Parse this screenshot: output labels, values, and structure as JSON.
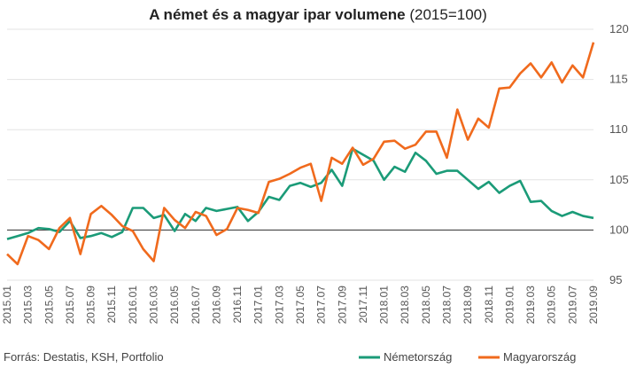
{
  "chart_data": {
    "type": "line",
    "title": "A német és a magyar ipar volumene",
    "title_suffix": "(2015=100)",
    "source": "Forrás: Destatis, KSH, Portfolio",
    "categories": [
      "2015.01",
      null,
      "2015.03",
      null,
      "2015.05",
      null,
      "2015.07",
      null,
      "2015.09",
      null,
      "2015.11",
      null,
      "2016.01",
      null,
      "2016.03",
      null,
      "2016.05",
      null,
      "2016.07",
      null,
      "2016.09",
      null,
      "2016.11",
      null,
      "2017.01",
      null,
      "2017.03",
      null,
      "2017.05",
      null,
      "2017.07",
      null,
      "2017.09",
      null,
      "2017.11",
      null,
      "2018.01",
      null,
      "2018.03",
      null,
      "2018.05",
      null,
      "2018.07",
      null,
      "2018.09",
      null,
      "2018.11",
      null,
      "2019.01",
      null,
      "2019.03",
      null,
      "2019.05",
      null,
      "2019.07",
      null,
      "2019.09"
    ],
    "series": [
      {
        "name": "Németország",
        "color": "#1b9b78",
        "values": [
          99.1,
          99.4,
          99.7,
          100.2,
          100.1,
          99.8,
          100.9,
          99.2,
          99.4,
          99.7,
          99.3,
          99.8,
          102.2,
          102.2,
          101.2,
          101.5,
          99.9,
          101.6,
          100.9,
          102.2,
          101.9,
          102.1,
          102.3,
          100.9,
          101.8,
          103.3,
          103.0,
          104.4,
          104.7,
          104.3,
          104.7,
          106.0,
          104.4,
          108.1,
          107.5,
          106.9,
          105.0,
          106.3,
          105.8,
          107.7,
          106.9,
          105.6,
          105.9,
          105.9,
          105.0,
          104.1,
          104.8,
          103.7,
          104.4,
          104.9,
          102.8,
          102.9,
          101.9,
          101.4,
          101.8,
          101.4,
          101.2
        ]
      },
      {
        "name": "Magyarország",
        "color": "#f06a1d",
        "values": [
          97.6,
          96.6,
          99.4,
          99.0,
          98.1,
          100.2,
          101.2,
          97.6,
          101.6,
          102.4,
          101.5,
          100.4,
          99.9,
          98.1,
          96.9,
          102.2,
          101.0,
          100.2,
          101.8,
          101.4,
          99.5,
          100.1,
          102.2,
          102.0,
          101.7,
          104.8,
          105.1,
          105.6,
          106.2,
          106.6,
          102.9,
          107.2,
          106.6,
          108.2,
          106.5,
          107.1,
          108.8,
          108.9,
          108.1,
          108.5,
          109.8,
          109.8,
          107.2,
          112.0,
          109.0,
          111.1,
          110.2,
          114.1,
          114.2,
          115.6,
          116.6,
          115.2,
          116.7,
          114.7,
          116.4,
          115.2,
          118.7
        ]
      }
    ],
    "ylim": [
      95,
      120
    ],
    "yticks": [
      95,
      100,
      105,
      110,
      115,
      120
    ],
    "grid": true,
    "hline": 100,
    "legend": "bottom-right"
  }
}
